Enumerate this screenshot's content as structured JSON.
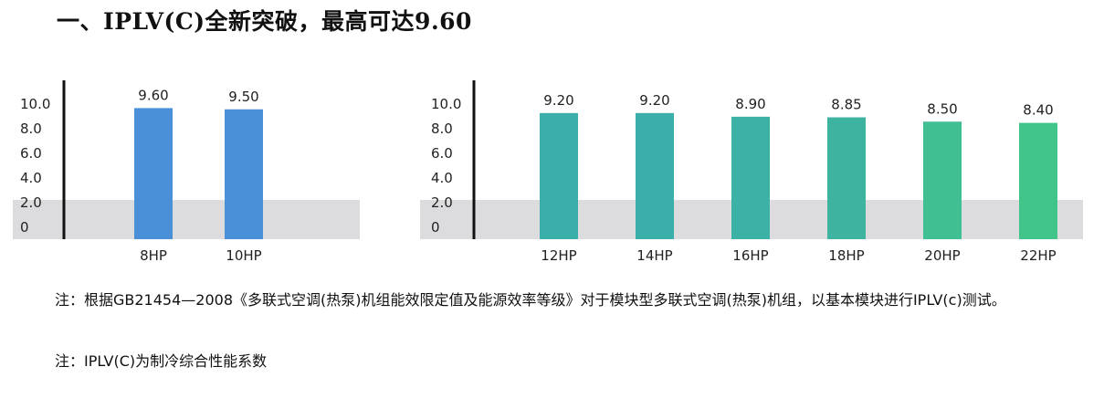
{
  "heading": "一、IPLV(C)全新突破，最高可达9.60",
  "chart_data": [
    {
      "type": "bar",
      "categories": [
        "8HP",
        "10HP"
      ],
      "values": [
        9.6,
        9.5
      ],
      "value_labels": [
        "9.60",
        "9.50"
      ],
      "ylim": [
        0,
        10.0
      ],
      "yticks": [
        "10.0",
        "8.0",
        "6.0",
        "4.0",
        "2.0",
        "0"
      ],
      "bar_color": "#4a90d9",
      "band_color": "#dcdcde"
    },
    {
      "type": "bar",
      "categories": [
        "12HP",
        "14HP",
        "16HP",
        "18HP",
        "20HP",
        "22HP"
      ],
      "values": [
        9.2,
        9.2,
        8.9,
        8.85,
        8.5,
        8.4
      ],
      "value_labels": [
        "9.20",
        "9.20",
        "8.90",
        "8.85",
        "8.50",
        "8.40"
      ],
      "ylim": [
        0,
        10.0
      ],
      "yticks": [
        "10.0",
        "8.0",
        "6.0",
        "4.0",
        "2.0",
        "0"
      ],
      "bar_colors": [
        "#3aaea9",
        "#3aaea9",
        "#3cb1a5",
        "#3db3a0",
        "#3fbf92",
        "#41c48a"
      ],
      "band_color": "#dcdcde"
    }
  ],
  "notes": [
    "注：根据GB21454—2008《多联式空调(热泵)机组能效限定值及能源效率等级》对于模块型多联式空调(热泵)机组，以基本模块进行IPLV(c)测试。",
    "注：IPLV(C)为制冷综合性能系数"
  ]
}
